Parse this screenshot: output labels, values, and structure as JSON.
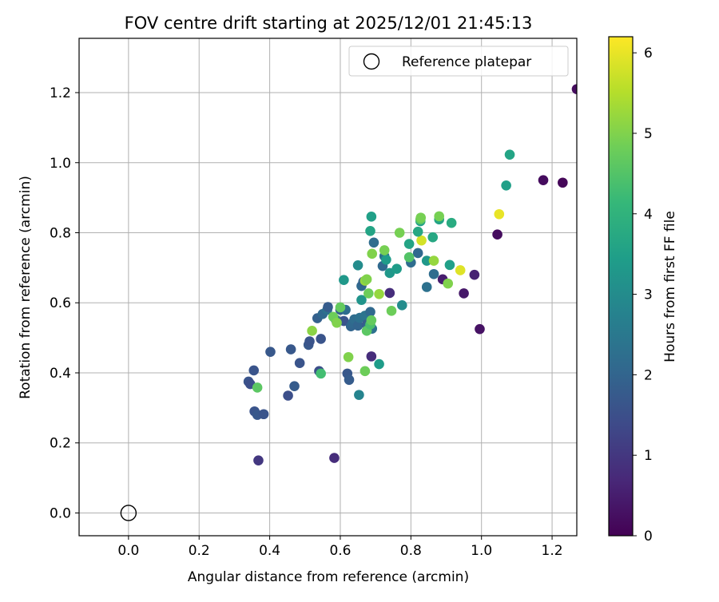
{
  "chart_data": {
    "type": "scatter",
    "title": "FOV centre drift starting at 2025/12/01 21:45:13",
    "xlabel": "Angular distance from reference (arcmin)",
    "ylabel": "Rotation from reference (arcmin)",
    "xlim": [
      -0.14,
      1.27
    ],
    "ylim": [
      -0.065,
      1.355
    ],
    "xticks": [
      0.0,
      0.2,
      0.4,
      0.6,
      0.8,
      1.0,
      1.2
    ],
    "yticks": [
      0.0,
      0.2,
      0.4,
      0.6,
      0.8,
      1.0,
      1.2
    ],
    "xtick_labels": [
      "0.0",
      "0.2",
      "0.4",
      "0.6",
      "0.8",
      "1.0",
      "1.2"
    ],
    "ytick_labels": [
      "0.0",
      "0.2",
      "0.4",
      "0.6",
      "0.8",
      "1.0",
      "1.2"
    ],
    "grid": true,
    "legend": {
      "position": "top-right",
      "label": "Reference platepar"
    },
    "reference_point": {
      "x": 0.0,
      "y": 0.0
    },
    "colorbar": {
      "label": "Hours from first FF file",
      "min": 0,
      "max": 6.2,
      "ticks": [
        0,
        1,
        2,
        3,
        4,
        5,
        6
      ],
      "tick_labels": [
        "0",
        "1",
        "2",
        "3",
        "4",
        "5",
        "6"
      ],
      "colormap": "viridis"
    },
    "points": [
      [
        1.27,
        1.21,
        0.2
      ],
      [
        1.175,
        0.95,
        0.2
      ],
      [
        1.23,
        0.943,
        0.1
      ],
      [
        1.045,
        0.795,
        0.2
      ],
      [
        0.995,
        0.525,
        0.3
      ],
      [
        0.95,
        0.627,
        0.4
      ],
      [
        0.98,
        0.68,
        0.6
      ],
      [
        0.89,
        0.667,
        0.5
      ],
      [
        0.74,
        0.628,
        0.8
      ],
      [
        0.688,
        0.447,
        0.8
      ],
      [
        0.583,
        0.157,
        0.8
      ],
      [
        0.368,
        0.15,
        1.0
      ],
      [
        1.05,
        0.853,
        6.0
      ],
      [
        0.94,
        0.693,
        5.9
      ],
      [
        0.83,
        0.778,
        5.8
      ],
      [
        1.08,
        1.023,
        3.6
      ],
      [
        1.07,
        0.935,
        3.5
      ],
      [
        0.34,
        0.375,
        1.6
      ],
      [
        0.345,
        0.368,
        1.5
      ],
      [
        0.355,
        0.407,
        1.6
      ],
      [
        0.357,
        0.29,
        1.6
      ],
      [
        0.365,
        0.28,
        1.7
      ],
      [
        0.383,
        0.282,
        1.6
      ],
      [
        0.402,
        0.46,
        1.7
      ],
      [
        0.452,
        0.335,
        1.5
      ],
      [
        0.46,
        0.467,
        1.7
      ],
      [
        0.47,
        0.362,
        1.8
      ],
      [
        0.485,
        0.428,
        1.6
      ],
      [
        0.51,
        0.48,
        1.7
      ],
      [
        0.513,
        0.49,
        1.6
      ],
      [
        0.535,
        0.556,
        1.9
      ],
      [
        0.54,
        0.405,
        1.5
      ],
      [
        0.545,
        0.497,
        1.6
      ],
      [
        0.55,
        0.568,
        2.1
      ],
      [
        0.563,
        0.58,
        2.3
      ],
      [
        0.565,
        0.588,
        1.8
      ],
      [
        0.587,
        0.552,
        2.2
      ],
      [
        0.6,
        0.58,
        1.9
      ],
      [
        0.61,
        0.548,
        1.6
      ],
      [
        0.615,
        0.58,
        2.2
      ],
      [
        0.62,
        0.398,
        1.7
      ],
      [
        0.625,
        0.38,
        1.8
      ],
      [
        0.63,
        0.533,
        2.0
      ],
      [
        0.635,
        0.542,
        2.1
      ],
      [
        0.64,
        0.553,
        2.2
      ],
      [
        0.65,
        0.535,
        2.0
      ],
      [
        0.655,
        0.557,
        2.3
      ],
      [
        0.66,
        0.648,
        2.1
      ],
      [
        0.665,
        0.66,
        1.9
      ],
      [
        0.67,
        0.563,
        2.4
      ],
      [
        0.675,
        0.538,
        1.8
      ],
      [
        0.68,
        0.53,
        2.2
      ],
      [
        0.685,
        0.574,
        2.1
      ],
      [
        0.69,
        0.526,
        2.3
      ],
      [
        0.695,
        0.772,
        2.2
      ],
      [
        0.72,
        0.705,
        2.1
      ],
      [
        0.725,
        0.733,
        2.3
      ],
      [
        0.8,
        0.715,
        2.2
      ],
      [
        0.82,
        0.742,
        2.1
      ],
      [
        0.845,
        0.645,
        2.3
      ],
      [
        0.865,
        0.682,
        2.2
      ],
      [
        0.65,
        0.707,
        3.0
      ],
      [
        0.653,
        0.337,
        2.8
      ],
      [
        0.61,
        0.665,
        3.3
      ],
      [
        0.66,
        0.608,
        3.2
      ],
      [
        0.688,
        0.846,
        3.5
      ],
      [
        0.685,
        0.805,
        3.6
      ],
      [
        0.71,
        0.425,
        3.4
      ],
      [
        0.74,
        0.685,
        3.3
      ],
      [
        0.76,
        0.697,
        3.4
      ],
      [
        0.775,
        0.593,
        3.0
      ],
      [
        0.795,
        0.768,
        3.6
      ],
      [
        0.82,
        0.803,
        3.7
      ],
      [
        0.827,
        0.833,
        3.5
      ],
      [
        0.845,
        0.72,
        3.3
      ],
      [
        0.862,
        0.787,
        3.7
      ],
      [
        0.88,
        0.838,
        3.6
      ],
      [
        0.915,
        0.828,
        3.8
      ],
      [
        0.91,
        0.708,
        3.5
      ],
      [
        0.73,
        0.723,
        3.4
      ],
      [
        0.365,
        0.358,
        4.6
      ],
      [
        0.52,
        0.52,
        5.1
      ],
      [
        0.545,
        0.398,
        4.3
      ],
      [
        0.58,
        0.56,
        4.8
      ],
      [
        0.59,
        0.543,
        5.0
      ],
      [
        0.6,
        0.587,
        4.7
      ],
      [
        0.623,
        0.445,
        5.0
      ],
      [
        0.67,
        0.405,
        4.8
      ],
      [
        0.67,
        0.663,
        5.2
      ],
      [
        0.675,
        0.667,
        5.0
      ],
      [
        0.675,
        0.52,
        4.6
      ],
      [
        0.68,
        0.627,
        4.8
      ],
      [
        0.685,
        0.538,
        4.4
      ],
      [
        0.688,
        0.55,
        4.7
      ],
      [
        0.69,
        0.74,
        5.0
      ],
      [
        0.71,
        0.625,
        5.2
      ],
      [
        0.725,
        0.75,
        4.9
      ],
      [
        0.745,
        0.577,
        4.8
      ],
      [
        0.768,
        0.8,
        4.9
      ],
      [
        0.795,
        0.73,
        4.5
      ],
      [
        0.827,
        0.838,
        4.6
      ],
      [
        0.828,
        0.843,
        4.9
      ],
      [
        0.865,
        0.72,
        5.2
      ],
      [
        0.88,
        0.847,
        4.9
      ],
      [
        0.905,
        0.655,
        5.0
      ]
    ]
  }
}
